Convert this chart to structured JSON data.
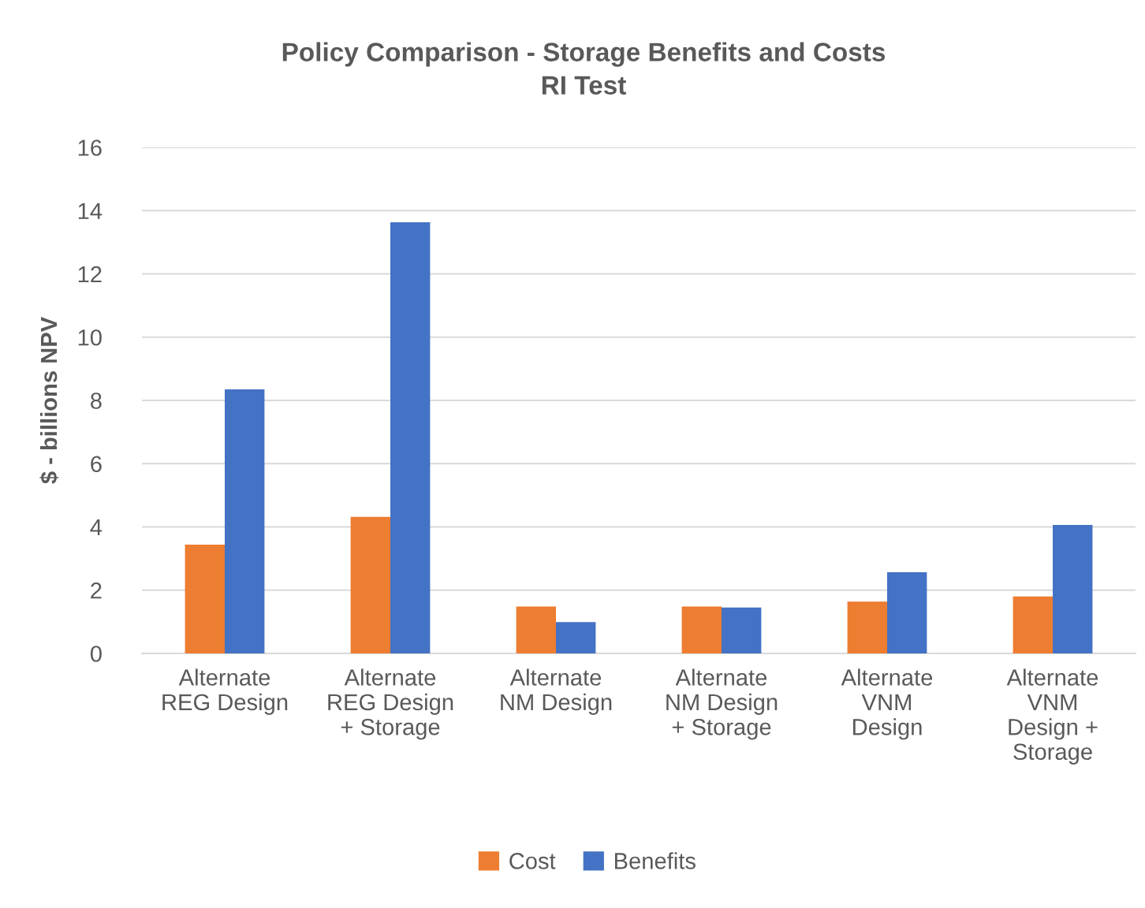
{
  "chart_data": {
    "type": "bar",
    "title": "Policy Comparison - Storage Benefits and Costs\nRI Test",
    "ylabel": "$ - billions NPV",
    "categories": [
      "Alternate\nREG Design",
      "Alternate\nREG Design\n+ Storage",
      "Alternate\nNM Design",
      "Alternate\nNM Design\n+ Storage",
      "Alternate\nVNM\nDesign",
      "Alternate\nVNM\nDesign +\nStorage"
    ],
    "series": [
      {
        "name": "Cost",
        "color": "#ed7d31",
        "values": [
          3.44,
          4.32,
          1.48,
          1.48,
          1.64,
          1.8
        ]
      },
      {
        "name": "Benefits",
        "color": "#4472c4",
        "values": [
          8.35,
          13.63,
          0.99,
          1.45,
          2.57,
          4.06
        ]
      }
    ],
    "ylim": [
      0,
      16
    ],
    "yticks": [
      0,
      2,
      4,
      6,
      8,
      10,
      12,
      14,
      16
    ],
    "grid": "y",
    "legend": "bottom"
  }
}
